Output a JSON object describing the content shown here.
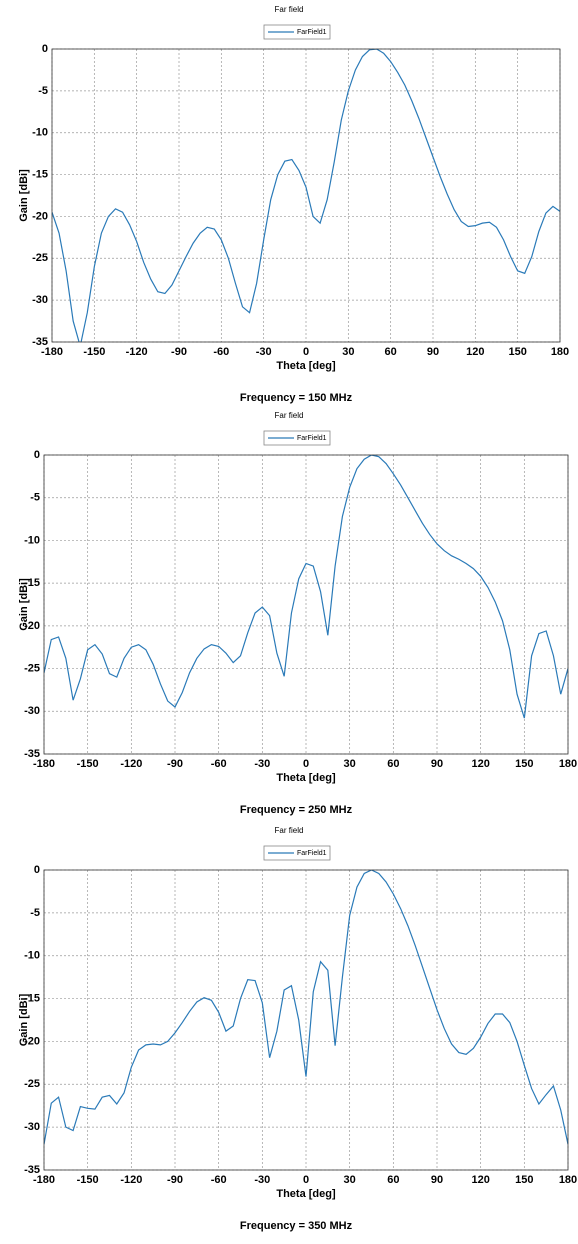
{
  "chart_data": [
    {
      "type": "line",
      "title": "Far field",
      "caption": "Frequency = 150 MHz",
      "xlabel": "Theta [deg]",
      "ylabel": "Gain [dBi]",
      "x": [
        -180,
        -175,
        -170,
        -165,
        -160,
        -155,
        -150,
        -145,
        -140,
        -135,
        -130,
        -125,
        -120,
        -115,
        -110,
        -105,
        -100,
        -95,
        -90,
        -85,
        -80,
        -75,
        -70,
        -65,
        -60,
        -55,
        -50,
        -45,
        -40,
        -35,
        -30,
        -25,
        -20,
        -15,
        -10,
        -5,
        0,
        5,
        10,
        15,
        20,
        25,
        30,
        35,
        40,
        45,
        50,
        55,
        60,
        65,
        70,
        75,
        80,
        85,
        90,
        95,
        100,
        105,
        110,
        115,
        120,
        125,
        130,
        135,
        140,
        145,
        150,
        155,
        160,
        165,
        170,
        175,
        180
      ],
      "series": [
        {
          "name": "FarField1",
          "color": "#2a7ab8",
          "values": [
            -19.5,
            -22,
            -26.5,
            -32.5,
            -35.5,
            -31.5,
            -26,
            -22,
            -20,
            -19.1,
            -19.5,
            -21,
            -23,
            -25.5,
            -27.5,
            -29,
            -29.2,
            -28.2,
            -26.5,
            -24.8,
            -23.2,
            -22,
            -21.3,
            -21.5,
            -22.8,
            -25,
            -28,
            -30.8,
            -31.5,
            -28,
            -22.8,
            -18,
            -15,
            -13.4,
            -13.2,
            -14.5,
            -16.5,
            -20,
            -20.8,
            -18,
            -13.5,
            -8.5,
            -5,
            -2.5,
            -0.9,
            -0.1,
            0,
            -0.5,
            -1.5,
            -2.8,
            -4.3,
            -6.2,
            -8.3,
            -10.6,
            -12.9,
            -15.2,
            -17.3,
            -19.2,
            -20.6,
            -21.2,
            -21.1,
            -20.8,
            -20.7,
            -21.3,
            -22.8,
            -24.8,
            -26.5,
            -26.8,
            -24.8,
            -21.8,
            -19.6,
            -18.8,
            -19.4
          ]
        }
      ],
      "xlim": [
        -180,
        180
      ],
      "ylim": [
        -35,
        0
      ],
      "xticks": [
        -180,
        -150,
        -120,
        -90,
        -60,
        -30,
        0,
        30,
        60,
        90,
        120,
        150,
        180
      ],
      "yticks": [
        -35,
        -30,
        -25,
        -20,
        -15,
        -10,
        -5,
        0
      ],
      "grid": true
    },
    {
      "type": "line",
      "title": "Far field",
      "caption": "Frequency = 250 MHz",
      "xlabel": "Theta [deg]",
      "ylabel": "Gain [dBi]",
      "x": [
        -180,
        -175,
        -170,
        -165,
        -160,
        -155,
        -150,
        -145,
        -140,
        -135,
        -130,
        -125,
        -120,
        -115,
        -110,
        -105,
        -100,
        -95,
        -90,
        -85,
        -80,
        -75,
        -70,
        -65,
        -60,
        -55,
        -50,
        -45,
        -40,
        -35,
        -30,
        -25,
        -20,
        -15,
        -10,
        -5,
        0,
        5,
        10,
        15,
        20,
        25,
        30,
        35,
        40,
        45,
        50,
        55,
        60,
        65,
        70,
        75,
        80,
        85,
        90,
        95,
        100,
        105,
        110,
        115,
        120,
        125,
        130,
        135,
        140,
        145,
        150,
        155,
        160,
        165,
        170,
        175,
        180
      ],
      "series": [
        {
          "name": "FarField1",
          "color": "#2a7ab8",
          "values": [
            -25.5,
            -21.6,
            -21.3,
            -23.8,
            -28.7,
            -26.2,
            -22.8,
            -22.2,
            -23.3,
            -25.6,
            -26,
            -23.8,
            -22.5,
            -22.2,
            -22.8,
            -24.5,
            -26.8,
            -28.8,
            -29.5,
            -27.8,
            -25.5,
            -23.8,
            -22.7,
            -22.2,
            -22.4,
            -23.2,
            -24.3,
            -23.5,
            -20.8,
            -18.5,
            -17.8,
            -18.8,
            -23.2,
            -25.9,
            -18.5,
            -14.5,
            -12.7,
            -13,
            -16,
            -21.1,
            -13,
            -7.2,
            -3.8,
            -1.6,
            -0.5,
            0,
            -0.2,
            -1,
            -2.2,
            -3.5,
            -5,
            -6.5,
            -8,
            -9.3,
            -10.4,
            -11.2,
            -11.8,
            -12.2,
            -12.7,
            -13.3,
            -14.2,
            -15.5,
            -17.2,
            -19.4,
            -22.8,
            -28,
            -30.8,
            -23.5,
            -20.9,
            -20.6,
            -23.5,
            -28,
            -25
          ]
        }
      ],
      "xlim": [
        -180,
        180
      ],
      "ylim": [
        -35,
        0
      ],
      "xticks": [
        -180,
        -150,
        -120,
        -90,
        -60,
        -30,
        0,
        30,
        60,
        90,
        120,
        150,
        180
      ],
      "yticks": [
        -35,
        -30,
        -25,
        -20,
        -15,
        -10,
        -5,
        0
      ],
      "grid": true
    },
    {
      "type": "line",
      "title": "Far field",
      "caption": "Frequency = 350 MHz",
      "xlabel": "Theta [deg]",
      "ylabel": "Gain [dBi]",
      "x": [
        -180,
        -175,
        -170,
        -165,
        -160,
        -155,
        -150,
        -145,
        -140,
        -135,
        -130,
        -125,
        -120,
        -115,
        -110,
        -105,
        -100,
        -95,
        -90,
        -85,
        -80,
        -75,
        -70,
        -65,
        -60,
        -55,
        -50,
        -45,
        -40,
        -35,
        -30,
        -25,
        -20,
        -15,
        -10,
        -5,
        0,
        5,
        10,
        15,
        20,
        25,
        30,
        35,
        40,
        45,
        50,
        55,
        60,
        65,
        70,
        75,
        80,
        85,
        90,
        95,
        100,
        105,
        110,
        115,
        120,
        125,
        130,
        135,
        140,
        145,
        150,
        155,
        160,
        165,
        170,
        175,
        180
      ],
      "series": [
        {
          "name": "FarField1",
          "color": "#2a7ab8",
          "values": [
            -32,
            -27.2,
            -26.5,
            -30,
            -30.4,
            -27.6,
            -27.8,
            -27.9,
            -26.5,
            -26.3,
            -27.3,
            -26,
            -23,
            -21,
            -20.4,
            -20.3,
            -20.4,
            -20,
            -19,
            -17.8,
            -16.5,
            -15.4,
            -14.9,
            -15.2,
            -16.6,
            -18.8,
            -18.2,
            -15,
            -12.8,
            -12.9,
            -15.5,
            -21.9,
            -18.8,
            -14,
            -13.5,
            -17.5,
            -24.1,
            -14.2,
            -10.7,
            -11.7,
            -20.5,
            -12.5,
            -5.3,
            -2,
            -0.4,
            0,
            -0.4,
            -1.4,
            -2.8,
            -4.5,
            -6.5,
            -8.8,
            -11.3,
            -13.8,
            -16.3,
            -18.5,
            -20.3,
            -21.3,
            -21.5,
            -20.8,
            -19.5,
            -17.9,
            -16.8,
            -16.8,
            -17.8,
            -20,
            -22.8,
            -25.5,
            -27.3,
            -26.2,
            -25.2,
            -28,
            -32
          ]
        }
      ],
      "xlim": [
        -180,
        180
      ],
      "ylim": [
        -35,
        0
      ],
      "xticks": [
        -180,
        -150,
        -120,
        -90,
        -60,
        -30,
        0,
        30,
        60,
        90,
        120,
        150,
        180
      ],
      "yticks": [
        -35,
        -30,
        -25,
        -20,
        -15,
        -10,
        -5,
        0
      ],
      "grid": true
    }
  ]
}
